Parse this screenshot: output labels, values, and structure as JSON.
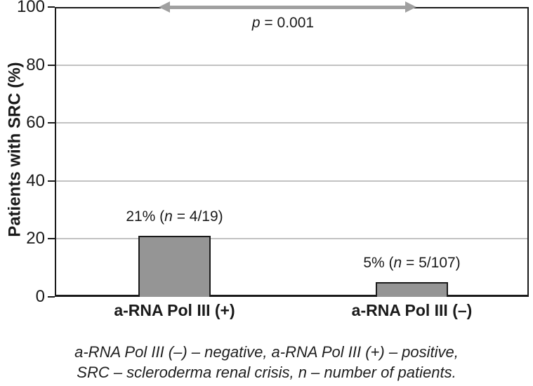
{
  "chart_data": {
    "type": "bar",
    "title": "",
    "ylabel": "Patients with SRC (%)",
    "ylim": [
      0,
      100
    ],
    "yticks": [
      0,
      20,
      40,
      60,
      80,
      100
    ],
    "grid": true,
    "categories": [
      "a-RNA Pol III (+)",
      "a-RNA Pol III (–)"
    ],
    "values": [
      21,
      5
    ],
    "bar_labels": [
      {
        "prefix": "21% (",
        "italic": "n",
        "suffix": " = 4/19)"
      },
      {
        "prefix": "5% (",
        "italic": "n",
        "suffix": " = 5/107)"
      }
    ],
    "p_annotation": {
      "variable": "p",
      "rest": " = 0.001"
    },
    "bar_color": "#959595",
    "arrow_color": "#a0a0a0",
    "grid_color": "#c2c2c2",
    "axis_color": "#1a1a1a"
  },
  "caption": {
    "line1": "a-RNA Pol III (–) – negative, a-RNA Pol III (+) – positive,",
    "line2": "SRC – scleroderma renal crisis, n – number of patients."
  }
}
